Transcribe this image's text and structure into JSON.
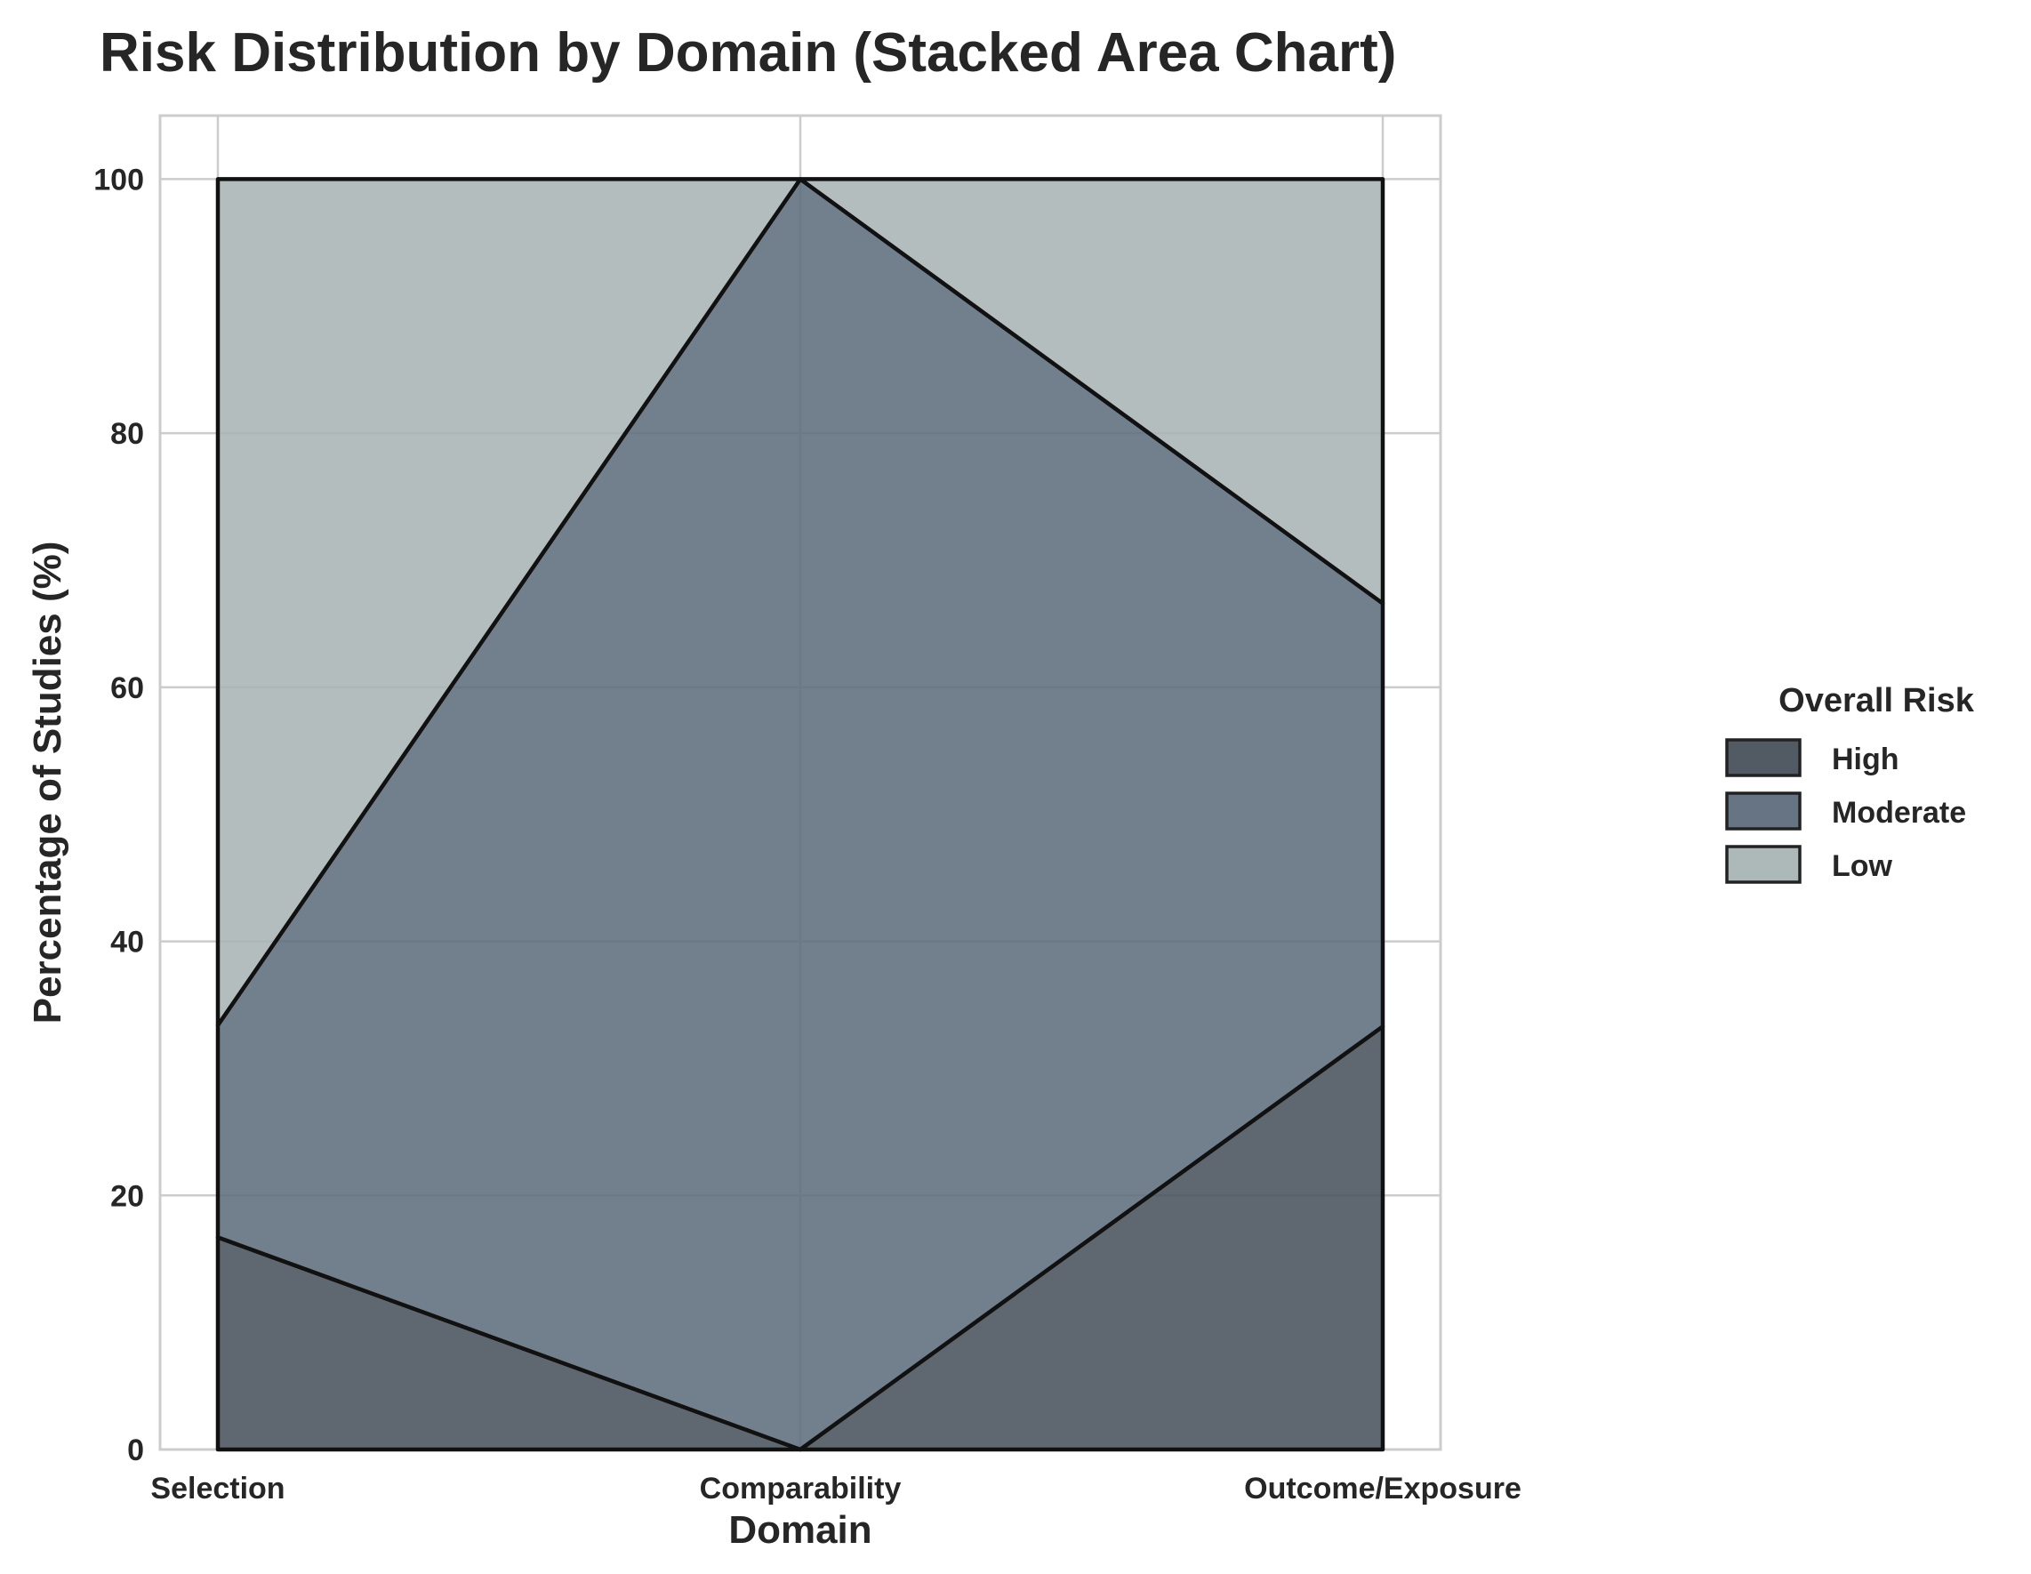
{
  "chart_data": {
    "type": "area",
    "stacked": true,
    "title": "Risk Distribution by Domain (Stacked Area Chart)",
    "xlabel": "Domain",
    "ylabel": "Percentage of Studies (%)",
    "categories": [
      "Selection",
      "Comparability",
      "Outcome/Exposure"
    ],
    "ylim": [
      0,
      105
    ],
    "yticks": [
      0,
      20,
      40,
      60,
      80,
      100
    ],
    "grid": true,
    "legend": {
      "title": "Overall Risk",
      "placement": "right"
    },
    "series": [
      {
        "name": "High",
        "values": [
          16.7,
          0,
          33.3
        ],
        "color": "#49525c"
      },
      {
        "name": "Moderate",
        "values": [
          16.7,
          100,
          33.3
        ],
        "color": "#5e6d7d"
      },
      {
        "name": "Low",
        "values": [
          66.6,
          0,
          33.4
        ],
        "color": "#a9b4b5"
      }
    ]
  }
}
